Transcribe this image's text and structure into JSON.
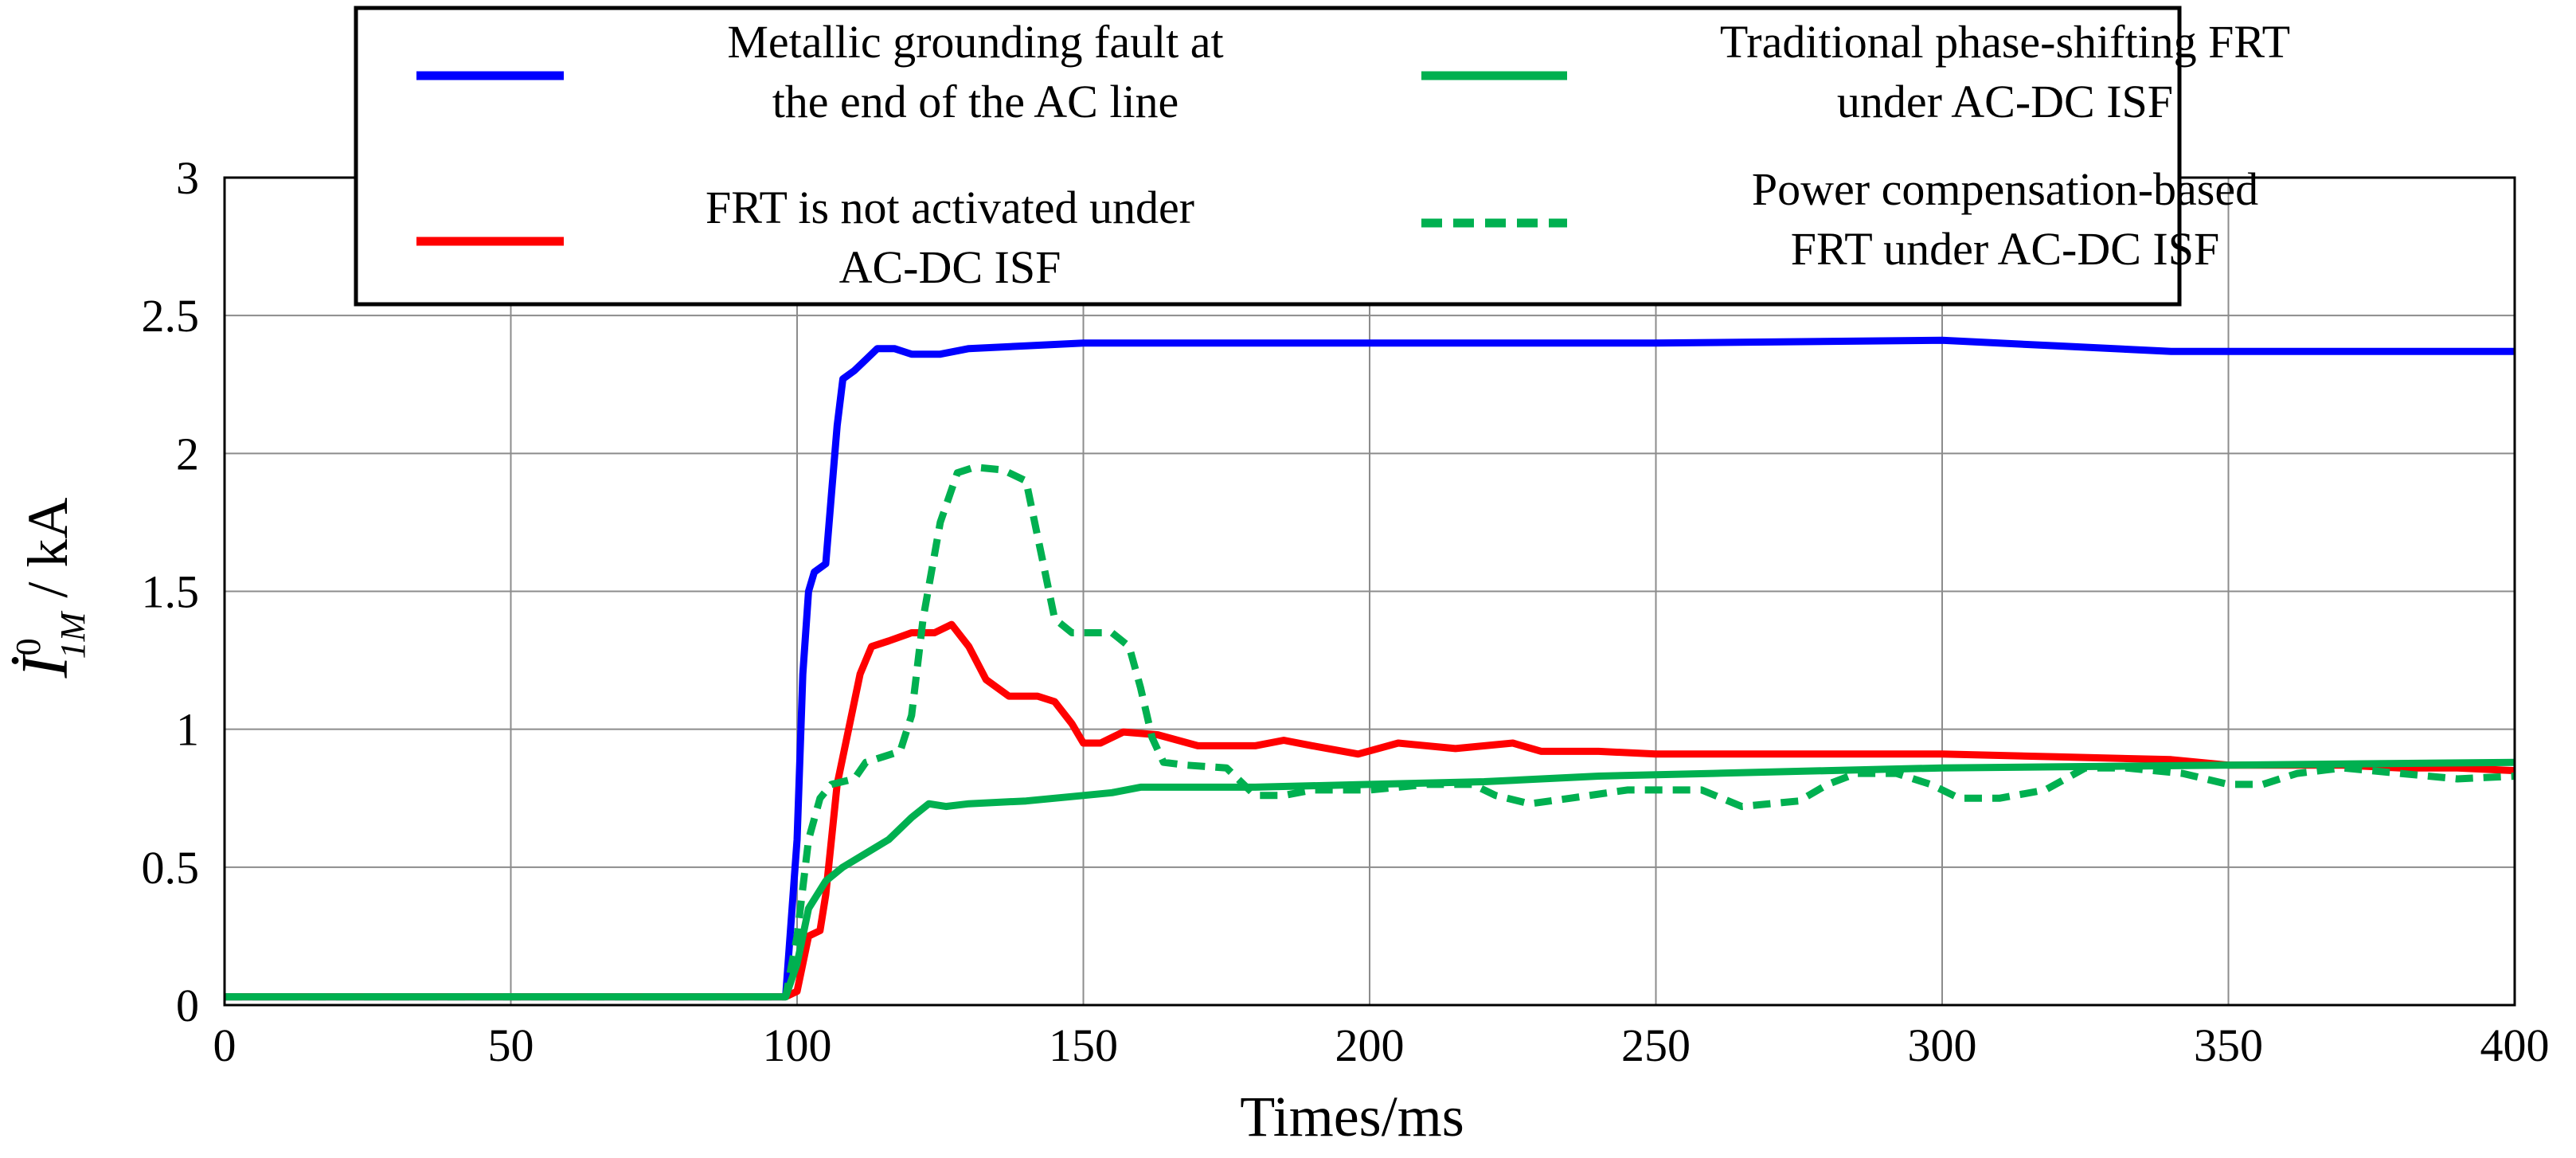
{
  "chart_data": {
    "type": "line",
    "title": "",
    "xlabel": "Times/ms",
    "ylabel": {
      "symbol": "İ",
      "superscript": "0",
      "subscript": "1M",
      "unit": " / kA"
    },
    "xlim": [
      0,
      400
    ],
    "ylim": [
      0,
      3
    ],
    "xticks": [
      0,
      50,
      100,
      150,
      200,
      250,
      300,
      350,
      400
    ],
    "yticks": [
      0,
      0.5,
      1,
      1.5,
      2,
      2.5,
      3
    ],
    "xtick_labels": [
      "0",
      "50",
      "100",
      "150",
      "200",
      "250",
      "300",
      "350",
      "400"
    ],
    "ytick_labels": [
      "0",
      "0.5",
      "1",
      "1.5",
      "2",
      "2.5",
      "3"
    ],
    "grid": true,
    "legend_position": "top (overlapping plot area)",
    "series": [
      {
        "name": "Metallic grounding fault at the end of the AC line",
        "legend_lines": [
          "Metallic grounding fault at",
          "the end of the AC line"
        ],
        "color": "#0000ff",
        "style": "solid",
        "points": [
          [
            0,
            0.03
          ],
          [
            98,
            0.03
          ],
          [
            100,
            0.6
          ],
          [
            101,
            1.2
          ],
          [
            102,
            1.5
          ],
          [
            103,
            1.57
          ],
          [
            105,
            1.6
          ],
          [
            106,
            1.85
          ],
          [
            107,
            2.1
          ],
          [
            108,
            2.27
          ],
          [
            110,
            2.3
          ],
          [
            112,
            2.34
          ],
          [
            114,
            2.38
          ],
          [
            117,
            2.38
          ],
          [
            120,
            2.36
          ],
          [
            125,
            2.36
          ],
          [
            130,
            2.38
          ],
          [
            140,
            2.39
          ],
          [
            150,
            2.4
          ],
          [
            200,
            2.4
          ],
          [
            250,
            2.4
          ],
          [
            300,
            2.41
          ],
          [
            320,
            2.39
          ],
          [
            340,
            2.37
          ],
          [
            400,
            2.37
          ]
        ]
      },
      {
        "name": "FRT is not activated under AC-DC ISF",
        "legend_lines": [
          "FRT  is not activated under",
          "AC-DC ISF"
        ],
        "color": "#ff0000",
        "style": "solid",
        "points": [
          [
            0,
            0.03
          ],
          [
            98,
            0.03
          ],
          [
            100,
            0.05
          ],
          [
            102,
            0.25
          ],
          [
            104,
            0.27
          ],
          [
            105,
            0.4
          ],
          [
            107,
            0.8
          ],
          [
            109,
            1.0
          ],
          [
            111,
            1.2
          ],
          [
            113,
            1.3
          ],
          [
            116,
            1.32
          ],
          [
            120,
            1.35
          ],
          [
            124,
            1.35
          ],
          [
            127,
            1.38
          ],
          [
            130,
            1.3
          ],
          [
            133,
            1.18
          ],
          [
            137,
            1.12
          ],
          [
            142,
            1.12
          ],
          [
            145,
            1.1
          ],
          [
            148,
            1.02
          ],
          [
            150,
            0.95
          ],
          [
            153,
            0.95
          ],
          [
            157,
            0.99
          ],
          [
            163,
            0.98
          ],
          [
            170,
            0.94
          ],
          [
            180,
            0.94
          ],
          [
            185,
            0.96
          ],
          [
            190,
            0.94
          ],
          [
            198,
            0.91
          ],
          [
            205,
            0.95
          ],
          [
            215,
            0.93
          ],
          [
            225,
            0.95
          ],
          [
            230,
            0.92
          ],
          [
            240,
            0.92
          ],
          [
            250,
            0.91
          ],
          [
            270,
            0.91
          ],
          [
            300,
            0.91
          ],
          [
            320,
            0.9
          ],
          [
            340,
            0.89
          ],
          [
            350,
            0.87
          ],
          [
            370,
            0.87
          ],
          [
            380,
            0.86
          ],
          [
            390,
            0.86
          ],
          [
            400,
            0.85
          ]
        ]
      },
      {
        "name": "Traditional phase-shifting FRT under AC-DC ISF",
        "legend_lines": [
          "Traditional phase-shifting FRT",
          "under AC-DC ISF"
        ],
        "color": "#00b050",
        "style": "solid",
        "points": [
          [
            0,
            0.03
          ],
          [
            98,
            0.03
          ],
          [
            100,
            0.15
          ],
          [
            102,
            0.35
          ],
          [
            105,
            0.45
          ],
          [
            108,
            0.5
          ],
          [
            112,
            0.55
          ],
          [
            116,
            0.6
          ],
          [
            120,
            0.68
          ],
          [
            123,
            0.73
          ],
          [
            126,
            0.72
          ],
          [
            130,
            0.73
          ],
          [
            140,
            0.74
          ],
          [
            150,
            0.76
          ],
          [
            155,
            0.77
          ],
          [
            160,
            0.79
          ],
          [
            180,
            0.79
          ],
          [
            200,
            0.8
          ],
          [
            220,
            0.81
          ],
          [
            240,
            0.83
          ],
          [
            260,
            0.84
          ],
          [
            280,
            0.85
          ],
          [
            300,
            0.86
          ],
          [
            350,
            0.87
          ],
          [
            400,
            0.88
          ]
        ]
      },
      {
        "name": "Power compensation-based FRT under AC-DC ISF",
        "legend_lines": [
          "Power compensation-based",
          "FRT under AC-DC ISF"
        ],
        "color": "#00b050",
        "style": "dashed",
        "points": [
          [
            0,
            0.03
          ],
          [
            98,
            0.03
          ],
          [
            100,
            0.25
          ],
          [
            102,
            0.6
          ],
          [
            104,
            0.75
          ],
          [
            106,
            0.8
          ],
          [
            110,
            0.82
          ],
          [
            112,
            0.88
          ],
          [
            115,
            0.9
          ],
          [
            118,
            0.92
          ],
          [
            120,
            1.05
          ],
          [
            122,
            1.4
          ],
          [
            125,
            1.75
          ],
          [
            128,
            1.93
          ],
          [
            131,
            1.95
          ],
          [
            136,
            1.94
          ],
          [
            140,
            1.9
          ],
          [
            143,
            1.6
          ],
          [
            145,
            1.4
          ],
          [
            148,
            1.35
          ],
          [
            155,
            1.35
          ],
          [
            158,
            1.3
          ],
          [
            160,
            1.15
          ],
          [
            162,
            0.97
          ],
          [
            164,
            0.88
          ],
          [
            168,
            0.87
          ],
          [
            175,
            0.86
          ],
          [
            180,
            0.76
          ],
          [
            185,
            0.76
          ],
          [
            190,
            0.78
          ],
          [
            200,
            0.78
          ],
          [
            210,
            0.8
          ],
          [
            218,
            0.8
          ],
          [
            222,
            0.76
          ],
          [
            228,
            0.73
          ],
          [
            235,
            0.75
          ],
          [
            245,
            0.78
          ],
          [
            258,
            0.78
          ],
          [
            265,
            0.72
          ],
          [
            275,
            0.74
          ],
          [
            280,
            0.8
          ],
          [
            285,
            0.84
          ],
          [
            292,
            0.84
          ],
          [
            298,
            0.8
          ],
          [
            303,
            0.75
          ],
          [
            310,
            0.75
          ],
          [
            318,
            0.78
          ],
          [
            325,
            0.86
          ],
          [
            332,
            0.86
          ],
          [
            342,
            0.84
          ],
          [
            350,
            0.8
          ],
          [
            356,
            0.8
          ],
          [
            362,
            0.84
          ],
          [
            370,
            0.86
          ],
          [
            380,
            0.84
          ],
          [
            390,
            0.82
          ],
          [
            400,
            0.83
          ]
        ]
      }
    ]
  }
}
